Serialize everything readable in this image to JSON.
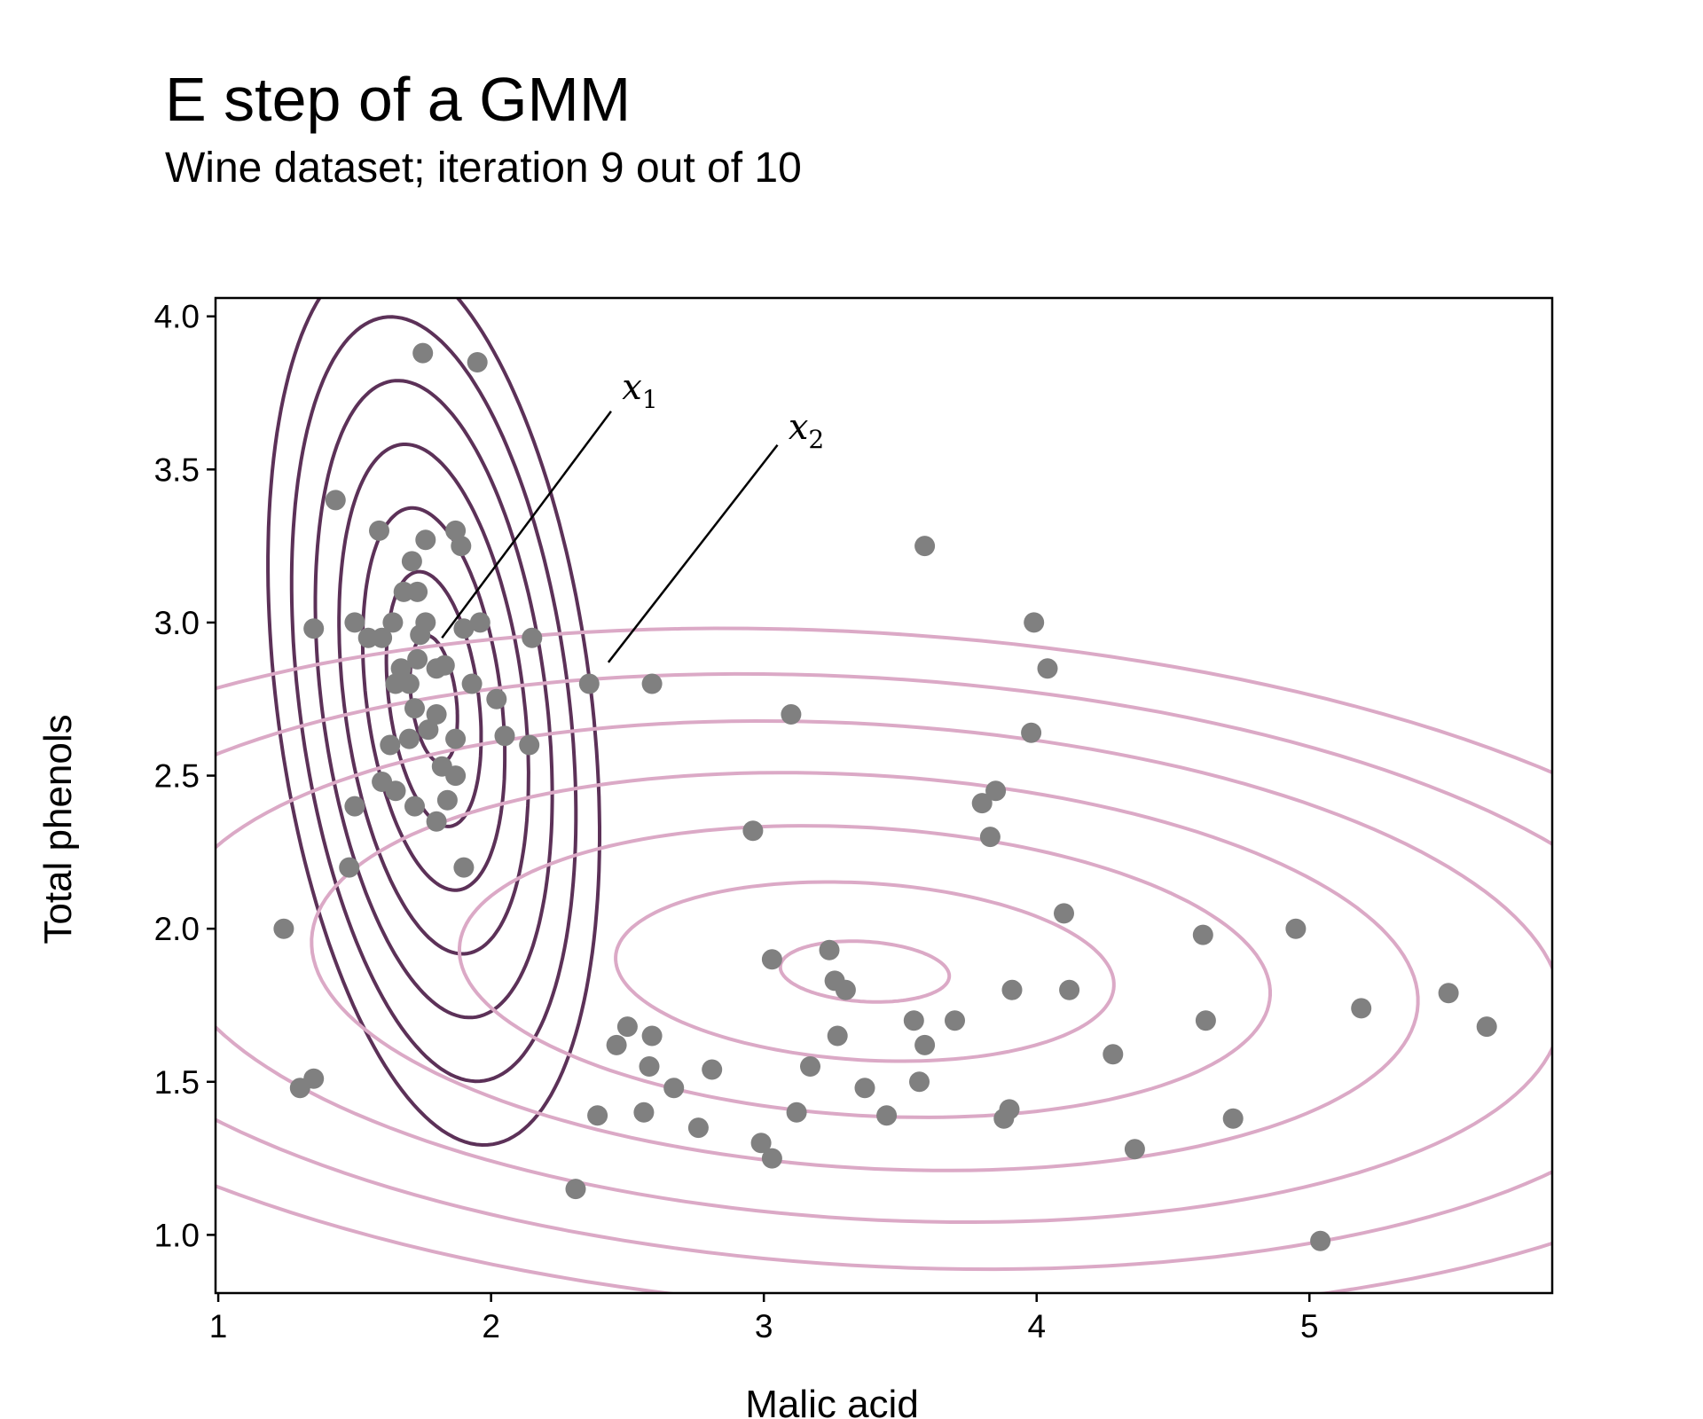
{
  "chart_data": {
    "type": "scatter",
    "title": "E step of a GMM",
    "subtitle": "Wine dataset; iteration 9 out of 10",
    "xlabel": "Malic acid",
    "ylabel": "Total phenols",
    "xlim": [
      0.99,
      5.89
    ],
    "ylim": [
      0.81,
      4.06
    ],
    "xticks": [
      1,
      2,
      3,
      4,
      5
    ],
    "yticks": [
      1.0,
      1.5,
      2.0,
      2.5,
      3.0,
      3.5,
      4.0
    ],
    "xtick_labels": [
      "1",
      "2",
      "3",
      "4",
      "5"
    ],
    "ytick_labels": [
      "1.0",
      "1.5",
      "2.0",
      "2.5",
      "3.0",
      "3.5",
      "4.0"
    ],
    "grid": false,
    "point_color": "#808080",
    "points": [
      [
        1.75,
        3.88
      ],
      [
        1.95,
        3.85
      ],
      [
        1.43,
        3.4
      ],
      [
        1.59,
        3.3
      ],
      [
        1.76,
        3.27
      ],
      [
        1.87,
        3.3
      ],
      [
        1.89,
        3.25
      ],
      [
        1.71,
        3.2
      ],
      [
        1.73,
        3.1
      ],
      [
        1.68,
        3.1
      ],
      [
        1.35,
        2.98
      ],
      [
        1.5,
        3.0
      ],
      [
        1.55,
        2.95
      ],
      [
        1.6,
        2.95
      ],
      [
        1.64,
        3.0
      ],
      [
        1.76,
        3.0
      ],
      [
        1.74,
        2.96
      ],
      [
        1.9,
        2.98
      ],
      [
        1.96,
        3.0
      ],
      [
        2.15,
        2.95
      ],
      [
        1.67,
        2.85
      ],
      [
        1.73,
        2.88
      ],
      [
        1.8,
        2.85
      ],
      [
        1.83,
        2.86
      ],
      [
        1.65,
        2.8
      ],
      [
        1.7,
        2.8
      ],
      [
        1.93,
        2.8
      ],
      [
        1.72,
        2.72
      ],
      [
        1.8,
        2.7
      ],
      [
        1.77,
        2.65
      ],
      [
        2.02,
        2.75
      ],
      [
        1.63,
        2.6
      ],
      [
        1.7,
        2.62
      ],
      [
        1.87,
        2.62
      ],
      [
        2.05,
        2.63
      ],
      [
        2.14,
        2.6
      ],
      [
        1.82,
        2.53
      ],
      [
        1.87,
        2.5
      ],
      [
        1.6,
        2.48
      ],
      [
        1.65,
        2.45
      ],
      [
        1.72,
        2.4
      ],
      [
        1.84,
        2.42
      ],
      [
        1.8,
        2.35
      ],
      [
        1.5,
        2.4
      ],
      [
        1.48,
        2.2
      ],
      [
        1.9,
        2.2
      ],
      [
        1.24,
        2.0
      ],
      [
        1.3,
        1.48
      ],
      [
        1.35,
        1.51
      ],
      [
        2.36,
        2.8
      ],
      [
        2.59,
        2.8
      ],
      [
        3.1,
        2.7
      ],
      [
        2.96,
        2.32
      ],
      [
        3.59,
        3.25
      ],
      [
        3.99,
        3.0
      ],
      [
        4.04,
        2.85
      ],
      [
        3.98,
        2.64
      ],
      [
        3.8,
        2.41
      ],
      [
        3.85,
        2.45
      ],
      [
        3.83,
        2.3
      ],
      [
        4.1,
        2.05
      ],
      [
        4.61,
        1.98
      ],
      [
        4.95,
        2.0
      ],
      [
        3.03,
        1.9
      ],
      [
        3.24,
        1.93
      ],
      [
        3.26,
        1.83
      ],
      [
        3.3,
        1.8
      ],
      [
        3.91,
        1.8
      ],
      [
        4.12,
        1.8
      ],
      [
        5.51,
        1.79
      ],
      [
        5.19,
        1.74
      ],
      [
        5.65,
        1.68
      ],
      [
        3.55,
        1.7
      ],
      [
        3.59,
        1.62
      ],
      [
        3.7,
        1.7
      ],
      [
        4.62,
        1.7
      ],
      [
        2.5,
        1.68
      ],
      [
        2.46,
        1.62
      ],
      [
        2.59,
        1.65
      ],
      [
        3.27,
        1.65
      ],
      [
        2.58,
        1.55
      ],
      [
        2.81,
        1.54
      ],
      [
        3.17,
        1.55
      ],
      [
        4.28,
        1.59
      ],
      [
        2.67,
        1.48
      ],
      [
        3.37,
        1.48
      ],
      [
        3.57,
        1.5
      ],
      [
        2.39,
        1.39
      ],
      [
        2.56,
        1.4
      ],
      [
        2.76,
        1.35
      ],
      [
        3.12,
        1.4
      ],
      [
        3.45,
        1.39
      ],
      [
        3.9,
        1.41
      ],
      [
        3.88,
        1.38
      ],
      [
        4.72,
        1.38
      ],
      [
        2.99,
        1.3
      ],
      [
        3.03,
        1.25
      ],
      [
        4.36,
        1.28
      ],
      [
        2.31,
        1.15
      ],
      [
        5.04,
        0.98
      ]
    ],
    "components": [
      {
        "color": "#5c3158",
        "mean": [
          1.79,
          2.75
        ],
        "cov_axes": {
          "semi_a": 0.21,
          "semi_b": 0.082,
          "angle_deg": -81.5
        },
        "levels": [
          1,
          2,
          3,
          4,
          5,
          6,
          7
        ]
      },
      {
        "color": "#dba9c6",
        "mean": [
          3.37,
          1.86
        ],
        "cov_axes": {
          "semi_a": 0.31,
          "semi_b": 0.098,
          "angle_deg": -3
        },
        "levels": [
          1,
          2.95,
          4.8,
          6.55,
          8.25,
          9.8,
          11.3
        ]
      }
    ],
    "annotations": [
      {
        "label": "x",
        "sub": "1",
        "text_at": [
          2.48,
          3.73
        ],
        "line_from": [
          2.44,
          3.69
        ],
        "line_to": [
          1.82,
          2.95
        ]
      },
      {
        "label": "x",
        "sub": "2",
        "text_at": [
          3.09,
          3.6
        ],
        "line_from": [
          3.05,
          3.58
        ],
        "line_to": [
          2.43,
          2.87
        ]
      }
    ]
  }
}
